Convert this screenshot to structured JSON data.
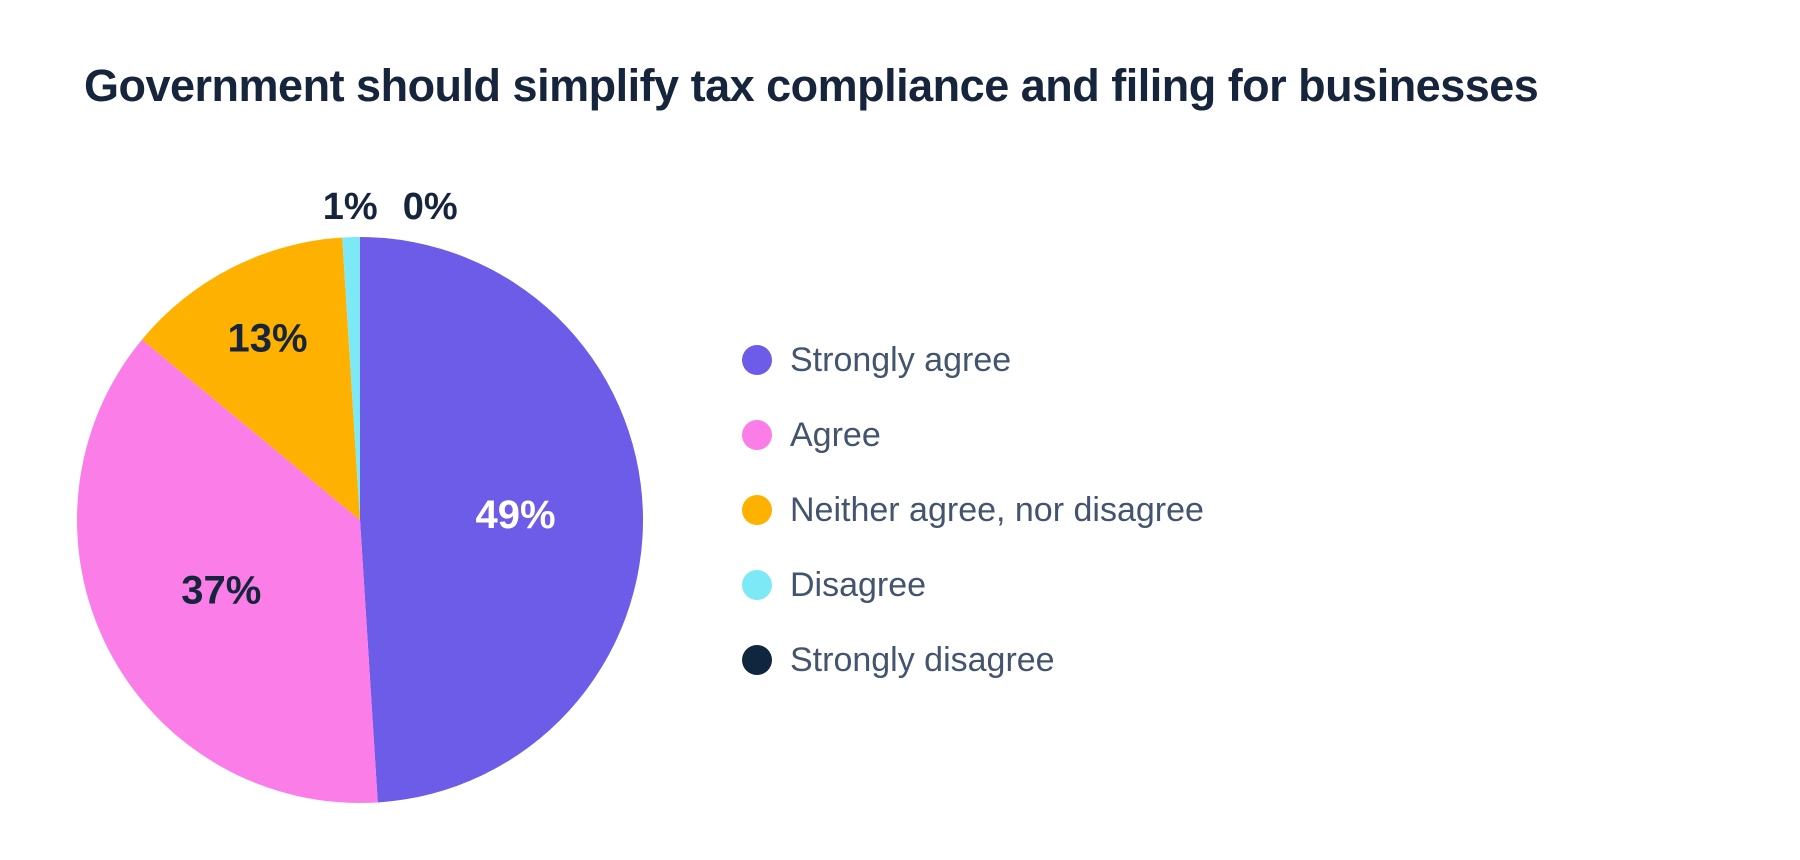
{
  "page": {
    "background": "#ffffff"
  },
  "chart_data": {
    "type": "pie",
    "title": "Government should simplify tax compliance and filing for businesses",
    "value_suffix": "%",
    "start_angle_deg": 0,
    "direction": "clockwise",
    "legend_position": "right",
    "grid": false,
    "slices": [
      {
        "label": "Strongly agree",
        "value": 49,
        "color": "#6C5CE7",
        "label_color": "#ffffff",
        "label_placement": "inside"
      },
      {
        "label": "Agree",
        "value": 37,
        "color": "#FB7DE8",
        "label_color": "#16253B",
        "label_placement": "inside"
      },
      {
        "label": "Neither agree, nor disagree",
        "value": 13,
        "color": "#FFB100",
        "label_color": "#16253B",
        "label_placement": "inside"
      },
      {
        "label": "Disagree",
        "value": 1,
        "color": "#7EE9F6",
        "label_color": "#16253B",
        "label_placement": "outside"
      },
      {
        "label": "Strongly disagree",
        "value": 0,
        "color": "#10263E",
        "label_color": "#16253B",
        "label_placement": "outside"
      }
    ],
    "colors": {
      "title": "#16253B",
      "legend_text": "#44546E"
    }
  }
}
